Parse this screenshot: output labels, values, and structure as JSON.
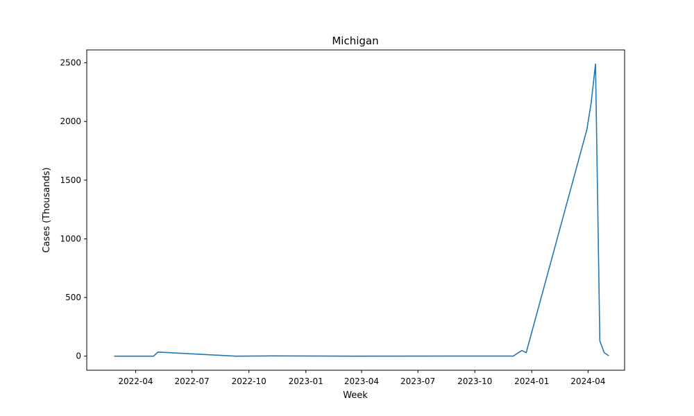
{
  "chart_data": {
    "type": "line",
    "title": "Michigan",
    "xlabel": "Week",
    "ylabel": "Cases (Thousands)",
    "x_ticks": [
      "2022-04",
      "2022-07",
      "2022-10",
      "2023-01",
      "2023-04",
      "2023-07",
      "2023-10",
      "2024-01",
      "2024-04"
    ],
    "y_ticks": [
      "0",
      "500",
      "1000",
      "1500",
      "2000",
      "2500"
    ],
    "xlim": [
      "2022-01-12",
      "2024-05-30"
    ],
    "ylim": [
      -120,
      2610
    ],
    "grid": false,
    "line_color": "#1f77b4",
    "series": [
      {
        "x": [
          "2022-02-26",
          "2022-04-30",
          "2022-05-07",
          "2022-09-10",
          "2022-11-05",
          "2023-03-18",
          "2023-10-21",
          "2023-12-02",
          "2023-12-16",
          "2023-12-23",
          "2024-03-30",
          "2024-04-06",
          "2024-04-13",
          "2024-04-20",
          "2024-04-27",
          "2024-05-04"
        ],
        "y": [
          0,
          0,
          35,
          0,
          2,
          0,
          1,
          1,
          48,
          30,
          1930,
          2160,
          2490,
          130,
          30,
          5
        ]
      }
    ]
  }
}
